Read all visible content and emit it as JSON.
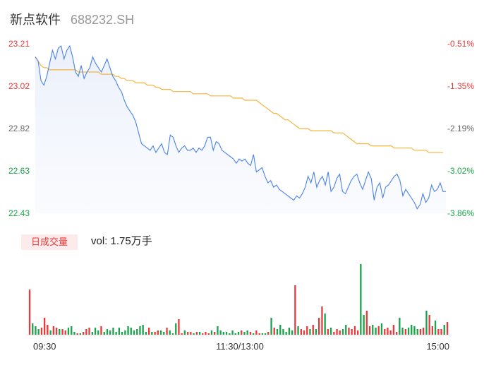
{
  "header": {
    "name": "新点软件",
    "code": "688232.SH"
  },
  "colors": {
    "up": "#e83a3a",
    "down": "#1aa34a",
    "price_line": "#4a82e8",
    "avg_line": "#f5b43d",
    "neutral": "#666666"
  },
  "volume": {
    "tag": "日成交量",
    "label": "vol:",
    "value": "1.75万手"
  },
  "chart_data": [
    {
      "type": "line",
      "title": "",
      "x_ticks": [
        "09:30",
        "11:30/13:00",
        "15:00"
      ],
      "y_left_ticks": [
        "23.21",
        "23.02",
        "22.82",
        "22.63",
        "22.43"
      ],
      "y_right_ticks": [
        "-0.51%",
        "-1.35%",
        "-2.19%",
        "-3.02%",
        "-3.86%"
      ],
      "ylim": [
        22.43,
        23.21
      ],
      "series": [
        {
          "name": "",
          "role": "price",
          "values": [
            23.15,
            23.13,
            23.04,
            23.02,
            23.06,
            23.12,
            23.18,
            23.14,
            23.19,
            23.2,
            23.14,
            23.18,
            23.2,
            23.15,
            23.08,
            23.06,
            23.11,
            23.05,
            23.08,
            23.1,
            23.15,
            23.12,
            23.1,
            23.08,
            23.11,
            23.14,
            23.1,
            23.06,
            23.04,
            23.01,
            22.99,
            22.95,
            22.92,
            22.9,
            22.88,
            22.85,
            22.8,
            22.75,
            22.74,
            22.73,
            22.72,
            22.74,
            22.71,
            22.73,
            22.75,
            22.71,
            22.7,
            22.79,
            22.78,
            22.74,
            22.71,
            22.73,
            22.74,
            22.72,
            22.72,
            22.73,
            22.71,
            22.73,
            22.72,
            22.74,
            22.78,
            22.78,
            22.72,
            22.76,
            22.75,
            22.72,
            22.71,
            22.7,
            22.69,
            22.68,
            22.66,
            22.68,
            22.67,
            22.68,
            22.66,
            22.65,
            22.7,
            22.62,
            22.63,
            22.64,
            22.6,
            22.57,
            22.58,
            22.55,
            22.56,
            22.54,
            22.53,
            22.52,
            22.51,
            22.5,
            22.49,
            22.51,
            22.5,
            22.52,
            22.55,
            22.6,
            22.57,
            22.62,
            22.55,
            22.58,
            22.6,
            22.56,
            22.62,
            22.53,
            22.55,
            22.59,
            22.61,
            22.53,
            22.52,
            22.55,
            22.58,
            22.6,
            22.61,
            22.57,
            22.54,
            22.58,
            22.62,
            22.59,
            22.49,
            22.55,
            22.57,
            22.5,
            22.55,
            22.56,
            22.58,
            22.6,
            22.61,
            22.58,
            22.51,
            22.54,
            22.52,
            22.5,
            22.48,
            22.45,
            22.47,
            22.52,
            22.48,
            22.5,
            22.56,
            22.53,
            22.54,
            22.57,
            22.53,
            22.53
          ],
          "min": 22.45,
          "max": 23.2
        },
        {
          "name": "",
          "role": "average",
          "values": [
            23.15,
            23.13,
            23.11,
            23.1,
            23.1,
            23.09,
            23.09,
            23.09,
            23.09,
            23.09,
            23.09,
            23.09,
            23.09,
            23.09,
            23.09,
            23.08,
            23.08,
            23.08,
            23.08,
            23.08,
            23.08,
            23.08,
            23.08,
            23.07,
            23.07,
            23.07,
            23.07,
            23.07,
            23.06,
            23.06,
            23.05,
            23.05,
            23.04,
            23.04,
            23.04,
            23.03,
            23.03,
            23.03,
            23.03,
            23.02,
            23.02,
            23.02,
            23.01,
            23.01,
            23.0,
            23.0,
            23.0,
            23.0,
            22.99,
            22.99,
            22.99,
            22.99,
            22.99,
            22.99,
            22.99,
            22.98,
            22.98,
            22.98,
            22.98,
            22.98,
            22.98,
            22.97,
            22.97,
            22.97,
            22.97,
            22.97,
            22.97,
            22.97,
            22.97,
            22.96,
            22.96,
            22.96,
            22.96,
            22.95,
            22.95,
            22.95,
            22.95,
            22.95,
            22.94,
            22.93,
            22.92,
            22.91,
            22.9,
            22.89,
            22.89,
            22.88,
            22.87,
            22.86,
            22.86,
            22.85,
            22.84,
            22.83,
            22.82,
            22.82,
            22.82,
            22.82,
            22.81,
            22.81,
            22.81,
            22.81,
            22.81,
            22.81,
            22.81,
            22.81,
            22.8,
            22.8,
            22.8,
            22.8,
            22.79,
            22.78,
            22.77,
            22.76,
            22.75,
            22.75,
            22.75,
            22.75,
            22.75,
            22.74,
            22.74,
            22.74,
            22.74,
            22.74,
            22.74,
            22.74,
            22.74,
            22.73,
            22.73,
            22.73,
            22.73,
            22.73,
            22.73,
            22.73,
            22.72,
            22.72,
            22.72,
            22.72,
            22.72,
            22.71,
            22.71,
            22.71,
            22.71,
            22.71,
            22.71
          ]
        }
      ]
    },
    {
      "type": "bar",
      "title": "",
      "series": [
        {
          "name": "",
          "values": [
            64,
            16,
            12,
            8,
            10,
            24,
            14,
            6,
            12,
            10,
            8,
            8,
            6,
            10,
            12,
            4,
            2,
            2,
            4,
            8,
            10,
            4,
            10,
            6,
            12,
            4,
            8,
            6,
            10,
            4,
            10,
            4,
            6,
            12,
            10,
            6,
            8,
            12,
            14,
            4,
            10,
            4,
            4,
            6,
            6,
            4,
            10,
            6,
            2,
            16,
            22,
            2,
            6,
            4,
            4,
            2,
            4,
            4,
            2,
            4,
            2,
            6,
            4,
            12,
            6,
            4,
            4,
            2,
            6,
            2,
            4,
            6,
            4,
            6,
            4,
            2,
            6,
            2,
            2,
            2,
            4,
            24,
            10,
            8,
            14,
            8,
            4,
            10,
            6,
            70,
            12,
            8,
            6,
            12,
            8,
            14,
            8,
            24,
            40,
            30,
            8,
            10,
            4,
            8,
            6,
            8,
            14,
            10,
            8,
            12,
            6,
            100,
            28,
            34,
            12,
            14,
            10,
            12,
            16,
            8,
            10,
            6,
            14,
            4,
            24,
            10,
            8,
            10,
            14,
            12,
            8,
            8,
            10,
            34,
            28,
            12,
            20,
            8,
            8,
            14,
            18
          ]
        }
      ]
    }
  ]
}
